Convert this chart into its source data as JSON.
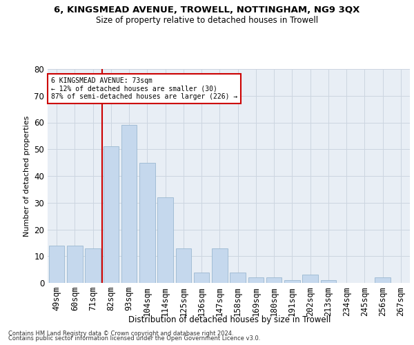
{
  "title": "6, KINGSMEAD AVENUE, TROWELL, NOTTINGHAM, NG9 3QX",
  "subtitle": "Size of property relative to detached houses in Trowell",
  "xlabel": "Distribution of detached houses by size in Trowell",
  "ylabel": "Number of detached properties",
  "categories": [
    "49sqm",
    "60sqm",
    "71sqm",
    "82sqm",
    "93sqm",
    "104sqm",
    "114sqm",
    "125sqm",
    "136sqm",
    "147sqm",
    "158sqm",
    "169sqm",
    "180sqm",
    "191sqm",
    "202sqm",
    "213sqm",
    "234sqm",
    "245sqm",
    "256sqm",
    "267sqm"
  ],
  "values": [
    14,
    14,
    13,
    51,
    59,
    45,
    32,
    13,
    4,
    13,
    4,
    2,
    2,
    1,
    3,
    1,
    0,
    0,
    2,
    0
  ],
  "bar_color": "#c5d8ed",
  "bar_edge_color": "#9ab8d0",
  "grid_color": "#ccd5e0",
  "background_color": "#e8eef5",
  "vline_color": "#cc0000",
  "annotation_text": "6 KINGSMEAD AVENUE: 73sqm\n← 12% of detached houses are smaller (30)\n87% of semi-detached houses are larger (226) →",
  "annotation_box_color": "#ffffff",
  "annotation_box_edge": "#cc0000",
  "ylim": [
    0,
    80
  ],
  "yticks": [
    0,
    10,
    20,
    30,
    40,
    50,
    60,
    70,
    80
  ],
  "footer1": "Contains HM Land Registry data © Crown copyright and database right 2024.",
  "footer2": "Contains public sector information licensed under the Open Government Licence v3.0."
}
